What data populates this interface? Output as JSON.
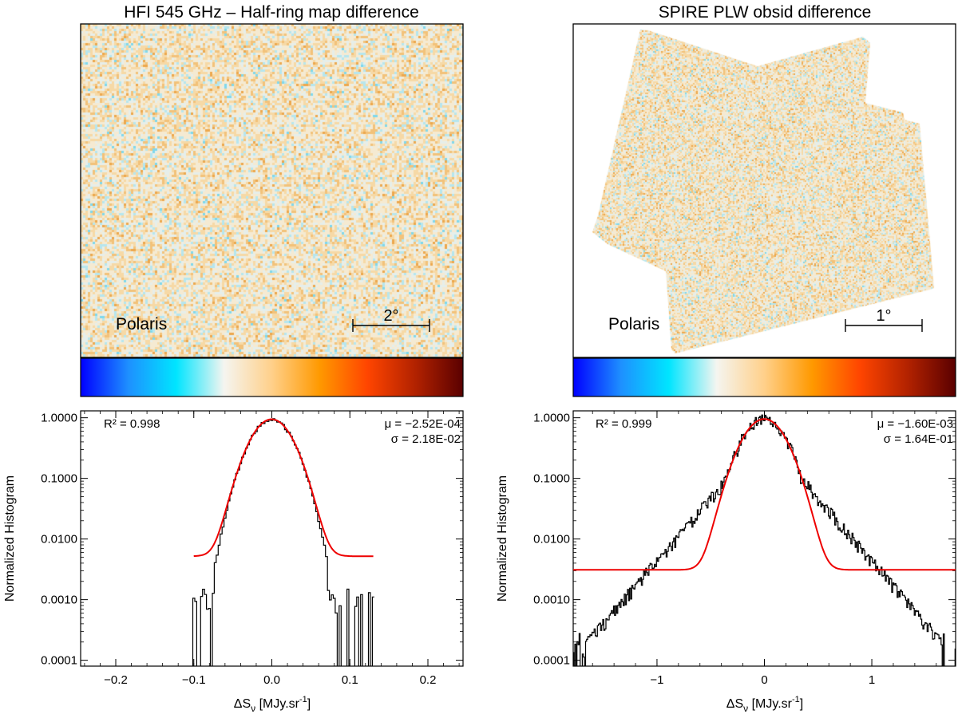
{
  "panels": [
    {
      "title": "HFI 545 GHz – Half-ring map difference",
      "label": "Polaris",
      "scale_label": "2°"
    },
    {
      "title": "SPIRE PLW obsid difference",
      "label": "Polaris",
      "scale_label": "1°"
    }
  ],
  "colorbar_colors": [
    "#0000ff",
    "#1e90ff",
    "#00e5ff",
    "#f5f5f0",
    "#ffd08a",
    "#ff9900",
    "#ff4500",
    "#b22200",
    "#5a0000"
  ],
  "map_colors": [
    "#7fd8ec",
    "#b6e6ee",
    "#e6eeea",
    "#f5ead2",
    "#f6d9a6",
    "#f2c27a",
    "#eca84e"
  ],
  "chart_data": [
    {
      "type": "histogram",
      "ylabel": "Normalized Histogram",
      "xlabel_symbol": "ΔS",
      "xlabel_sub": "ν",
      "xlabel_unit": " [MJy.sr",
      "xlabel_exp": "-1",
      "xlabel_end": "]",
      "yscale": "log",
      "xlim": [
        -0.245,
        0.245
      ],
      "ylim": [
        8e-05,
        1.3
      ],
      "xticks": [
        -0.2,
        -0.1,
        0.0,
        0.1,
        0.2
      ],
      "xtick_labels": [
        "−0.2",
        "−0.1",
        "0.0",
        "0.1",
        "0.2"
      ],
      "yticks": [
        0.0001,
        0.001,
        0.01,
        0.1,
        1
      ],
      "ytick_labels": [
        "0.0001",
        "0.0010",
        "0.0100",
        "0.1000",
        "1.0000"
      ],
      "r2_text": "R² = 0.998",
      "mu_text": "μ = −2.52E-04",
      "sigma_text": "σ =  2.18E-02",
      "fit": {
        "mu": -0.000252,
        "sigma": 0.0218,
        "amplitude": 0.94,
        "floor": 0.0052,
        "x_range": [
          -0.1,
          0.13
        ]
      },
      "data_range": [
        -0.1,
        0.13
      ],
      "data_step": 0.0025
    },
    {
      "type": "histogram",
      "ylabel": "Normalized Histogram",
      "xlabel_symbol": "ΔS",
      "xlabel_sub": "ν",
      "xlabel_unit": " [MJy.sr",
      "xlabel_exp": "-1",
      "xlabel_end": "]",
      "yscale": "log",
      "xlim": [
        -1.78,
        1.78
      ],
      "ylim": [
        8e-05,
        1.3
      ],
      "xticks": [
        -1,
        0,
        1
      ],
      "xtick_labels": [
        "−1",
        "0",
        "1"
      ],
      "yticks": [
        0.0001,
        0.001,
        0.01,
        0.1,
        1
      ],
      "ytick_labels": [
        "0.0001",
        "0.0010",
        "0.0100",
        "0.1000",
        "1.0000"
      ],
      "r2_text": "R² = 0.999",
      "mu_text": "μ = −1.60E-03",
      "sigma_text": "σ =  1.64E-01",
      "fit": {
        "mu": -0.0016,
        "sigma": 0.164,
        "amplitude": 0.95,
        "floor": 0.0031,
        "x_range": [
          -1.78,
          1.78
        ]
      },
      "data_range": [
        -1.78,
        1.78
      ],
      "data_step": 0.01
    }
  ]
}
